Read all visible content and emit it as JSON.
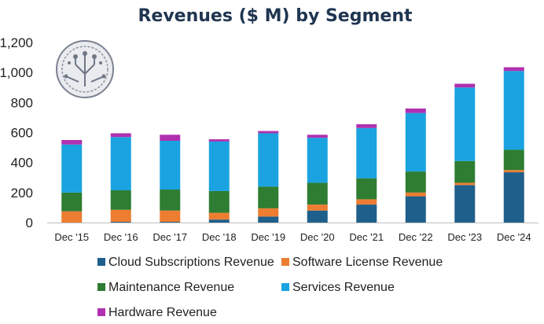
{
  "chart_data": {
    "type": "bar",
    "stacked": true,
    "title": "Revenues ($ M) by Segment",
    "xlabel": "",
    "ylabel": "",
    "ylim": [
      0,
      1200
    ],
    "yticks": [
      "0",
      "200",
      "400",
      "600",
      "800",
      "1,000",
      "1,200"
    ],
    "ytick_values": [
      0,
      200,
      400,
      600,
      800,
      1000,
      1200
    ],
    "grid": false,
    "legend_position": "bottom",
    "categories": [
      "Dec '15",
      "Dec '16",
      "Dec '17",
      "Dec '18",
      "Dec '19",
      "Dec '20",
      "Dec '21",
      "Dec '22",
      "Dec '23",
      "Dec '24"
    ],
    "series": [
      {
        "name": "Cloud Subscriptions Revenue",
        "color": "#1f5f8b",
        "values": [
          0,
          5,
          5,
          20,
          40,
          80,
          120,
          175,
          250,
          335
        ]
      },
      {
        "name": "Software License Revenue",
        "color": "#ed7d31",
        "values": [
          75,
          80,
          75,
          45,
          55,
          40,
          35,
          25,
          15,
          15
        ]
      },
      {
        "name": "Maintenance Revenue",
        "color": "#2e7d32",
        "values": [
          125,
          130,
          140,
          145,
          145,
          145,
          140,
          140,
          145,
          135
        ]
      },
      {
        "name": "Services Revenue",
        "color": "#1aa3e0",
        "values": [
          320,
          355,
          325,
          330,
          355,
          300,
          335,
          390,
          490,
          525
        ]
      },
      {
        "name": "Hardware Revenue",
        "color": "#b030b0",
        "values": [
          30,
          25,
          40,
          15,
          15,
          20,
          25,
          30,
          25,
          25
        ]
      }
    ]
  },
  "logo": {
    "icon": "circuit-tree-seal"
  }
}
